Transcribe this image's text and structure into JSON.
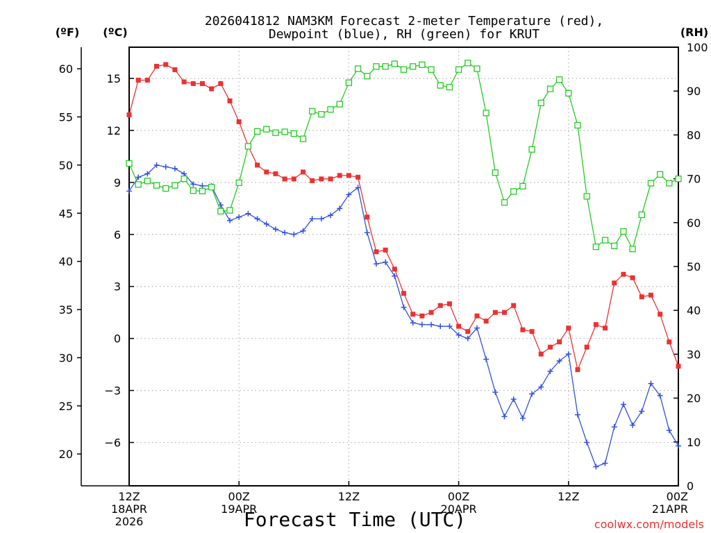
{
  "chart_data": {
    "type": "line",
    "title_line1": "2026041812 NAM3KM Forecast 2-meter Temperature (red),",
    "title_line2": "Dewpoint (blue), RH (green) for KRUT",
    "xlabel": "Forecast Time (UTC)",
    "credit": "coolwx.com/models",
    "axes": {
      "fahrenheit": {
        "label": "(ºF)",
        "ticks": [
          20,
          25,
          30,
          35,
          40,
          45,
          50,
          55,
          60
        ]
      },
      "celsius": {
        "label": "(ºC)",
        "range": [
          -8.5,
          16.8
        ],
        "ticks": [
          -6,
          -3,
          0,
          3,
          6,
          9,
          12,
          15
        ],
        "tick_labels": [
          "−6",
          "−3",
          "0",
          "3",
          "6",
          "9",
          "12",
          "15"
        ]
      },
      "rh": {
        "label": "(RH)",
        "range": [
          0,
          100
        ],
        "ticks": [
          0,
          10,
          20,
          30,
          40,
          50,
          60,
          70,
          80,
          90,
          100
        ]
      }
    },
    "x_range_hours": [
      0,
      60
    ],
    "x_ticks": [
      {
        "hour": 0,
        "lines": [
          "12Z",
          "18APR",
          "2026"
        ]
      },
      {
        "hour": 12,
        "lines": [
          "00Z",
          "19APR"
        ]
      },
      {
        "hour": 24,
        "lines": [
          "12Z"
        ]
      },
      {
        "hour": 36,
        "lines": [
          "00Z",
          "20APR"
        ]
      },
      {
        "hour": 48,
        "lines": [
          "12Z"
        ]
      },
      {
        "hour": 60,
        "lines": [
          "00Z",
          "21APR"
        ]
      }
    ],
    "series": [
      {
        "name": "Temperature",
        "axis": "celsius",
        "color": "#ee3030",
        "marker": "filled-square",
        "values": [
          12.9,
          14.9,
          14.9,
          15.7,
          15.8,
          15.5,
          14.8,
          14.7,
          14.7,
          14.4,
          14.7,
          13.7,
          12.5,
          11.1,
          10.0,
          9.6,
          9.5,
          9.2,
          9.2,
          9.6,
          9.1,
          9.2,
          9.2,
          9.4,
          9.4,
          9.3,
          7.0,
          5.0,
          5.1,
          4.0,
          2.6,
          1.4,
          1.3,
          1.5,
          1.9,
          2.0,
          0.7,
          0.4,
          1.3,
          1.0,
          1.5,
          1.5,
          1.9,
          0.5,
          0.4,
          -0.9,
          -0.5,
          -0.2,
          0.6,
          -1.8,
          -0.5,
          0.8,
          0.6,
          3.2,
          3.7,
          3.5,
          2.4,
          2.5,
          1.4,
          -0.2,
          -1.6
        ]
      },
      {
        "name": "Dewpoint",
        "axis": "celsius",
        "color": "#3050e0",
        "marker": "plus",
        "values": [
          8.5,
          9.3,
          9.5,
          10.0,
          9.9,
          9.8,
          9.5,
          8.9,
          8.8,
          8.8,
          7.7,
          6.8,
          7.0,
          7.2,
          6.9,
          6.6,
          6.3,
          6.1,
          6.0,
          6.2,
          6.9,
          6.9,
          7.1,
          7.5,
          8.3,
          8.7,
          6.1,
          4.3,
          4.4,
          3.6,
          1.8,
          0.9,
          0.8,
          0.8,
          0.7,
          0.7,
          0.2,
          0.0,
          0.6,
          -1.2,
          -3.1,
          -4.5,
          -3.5,
          -4.6,
          -3.2,
          -2.8,
          -1.9,
          -1.3,
          -0.9,
          -4.4,
          -6.0,
          -7.4,
          -7.2,
          -5.1,
          -3.8,
          -5.0,
          -4.2,
          -2.6,
          -3.3,
          -5.3,
          -6.2
        ]
      },
      {
        "name": "Relative Humidity",
        "axis": "rh",
        "color": "#22cc22",
        "marker": "open-square",
        "values": [
          73.5,
          68.7,
          69.5,
          68.5,
          67.8,
          68.5,
          70.0,
          67.3,
          67.2,
          68.1,
          62.6,
          62.8,
          69.1,
          77.4,
          80.8,
          81.3,
          80.5,
          80.7,
          80.3,
          79.1,
          85.4,
          84.7,
          85.8,
          87.0,
          91.9,
          95.1,
          93.4,
          95.6,
          95.6,
          96.2,
          94.9,
          95.6,
          96.0,
          94.9,
          91.3,
          90.9,
          94.9,
          96.4,
          95.1,
          85.0,
          71.4,
          64.6,
          67.1,
          68.3,
          76.7,
          87.3,
          90.5,
          92.6,
          89.5,
          82.2,
          66.0,
          54.5,
          56.0,
          54.7,
          58.0,
          54.0,
          61.8,
          69.0,
          71.0,
          69.0,
          70.0
        ]
      }
    ]
  }
}
